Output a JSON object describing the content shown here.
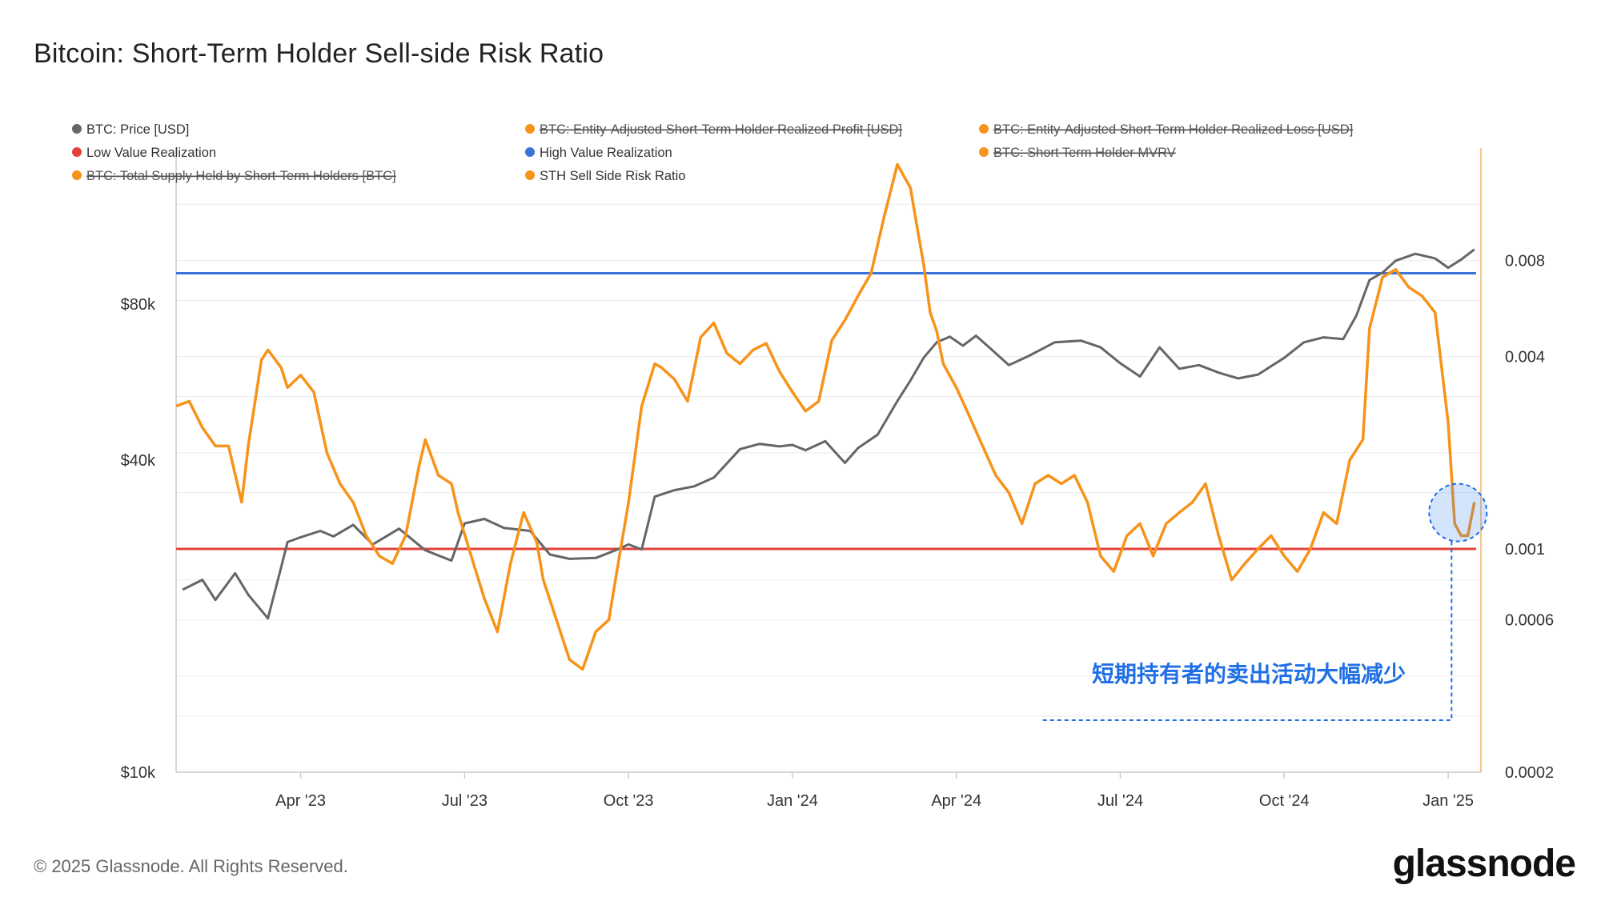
{
  "chart_data": {
    "type": "line",
    "title": "Bitcoin: Short-Term Holder Sell-side Risk Ratio",
    "x_ticks": [
      "Apr '23",
      "Jul '23",
      "Oct '23",
      "Jan '24",
      "Apr '24",
      "Jul '24",
      "Oct '24",
      "Jan '25"
    ],
    "x_tick_values": [
      2023.25,
      2023.5,
      2023.75,
      2024.0,
      2024.25,
      2024.5,
      2024.75,
      2025.0
    ],
    "xlim": [
      2023.06,
      2025.05
    ],
    "y_left": {
      "scale": "log",
      "lim": [
        10000,
        160000
      ],
      "ticks": [
        80000,
        40000,
        10000
      ],
      "tick_labels": [
        "$80k",
        "$40k",
        "$10k"
      ]
    },
    "y_right": {
      "scale": "log",
      "lim": [
        0.0002,
        0.018
      ],
      "ticks": [
        0.008,
        0.004,
        0.001,
        0.0006,
        0.0002
      ],
      "tick_labels": [
        "0.008",
        "0.004",
        "0.001",
        "0.0006",
        "0.0002"
      ]
    },
    "legend": [
      {
        "label": "BTC: Price [USD]",
        "color": "#666666",
        "struck": false
      },
      {
        "label": "BTC: Entity-Adjusted Short-Term Holder Realized Profit [USD]",
        "color": "#f7931a",
        "struck": true
      },
      {
        "label": "BTC: Entity-Adjusted Short-Term Holder Realized Loss [USD]",
        "color": "#f7931a",
        "struck": true
      },
      {
        "label": "Low Value Realization",
        "color": "#e5403a",
        "struck": false
      },
      {
        "label": "High Value Realization",
        "color": "#3b73d9",
        "struck": false
      },
      {
        "label": "BTC: Short Term Holder MVRV",
        "color": "#f7931a",
        "struck": true
      },
      {
        "label": "BTC: Total Supply Held by Short-Term Holders [BTC]",
        "color": "#f7931a",
        "struck": true
      },
      {
        "label": "STH Sell Side Risk Ratio",
        "color": "#f7931a",
        "struck": false
      }
    ],
    "thresholds": {
      "high_value_realization": 0.0073,
      "low_value_realization": 0.001
    },
    "series": [
      {
        "name": "BTC: Price [USD]",
        "axis": "left",
        "color": "#666666",
        "x": [
          2023.07,
          2023.1,
          2023.12,
          2023.15,
          2023.17,
          2023.2,
          2023.22,
          2023.23,
          2023.25,
          2023.28,
          2023.3,
          2023.33,
          2023.36,
          2023.4,
          2023.44,
          2023.48,
          2023.5,
          2023.53,
          2023.56,
          2023.6,
          2023.63,
          2023.66,
          2023.7,
          2023.73,
          2023.75,
          2023.77,
          2023.79,
          2023.82,
          2023.85,
          2023.88,
          2023.92,
          2023.95,
          2023.98,
          2024.0,
          2024.02,
          2024.05,
          2024.08,
          2024.1,
          2024.13,
          2024.16,
          2024.18,
          2024.2,
          2024.22,
          2024.24,
          2024.26,
          2024.28,
          2024.3,
          2024.33,
          2024.36,
          2024.4,
          2024.44,
          2024.47,
          2024.5,
          2024.53,
          2024.56,
          2024.59,
          2024.62,
          2024.65,
          2024.68,
          2024.71,
          2024.75,
          2024.78,
          2024.81,
          2024.84,
          2024.86,
          2024.88,
          2024.9,
          2024.92,
          2024.95,
          2024.98,
          2025.0,
          2025.02,
          2025.04
        ],
        "y": [
          22500,
          23500,
          21500,
          24200,
          22000,
          19800,
          24800,
          27800,
          28400,
          29200,
          28500,
          30000,
          27500,
          29500,
          26800,
          25600,
          30200,
          30800,
          29600,
          29200,
          26300,
          25800,
          25900,
          26800,
          27500,
          26900,
          34000,
          35000,
          35600,
          37000,
          42000,
          43000,
          42500,
          42800,
          41800,
          43500,
          39500,
          42200,
          44800,
          52000,
          57000,
          63000,
          67500,
          69200,
          66500,
          69500,
          66000,
          61000,
          63500,
          67500,
          68000,
          66000,
          61500,
          58000,
          66000,
          60000,
          61000,
          59000,
          57500,
          58500,
          63000,
          67500,
          69000,
          68500,
          76000,
          89000,
          92000,
          97000,
          100000,
          98000,
          94000,
          97500,
          102000
        ]
      },
      {
        "name": "STH Sell Side Risk Ratio",
        "axis": "right",
        "color": "#f7931a",
        "x": [
          2023.06,
          2023.08,
          2023.1,
          2023.12,
          2023.14,
          2023.16,
          2023.17,
          2023.19,
          2023.2,
          2023.22,
          2023.23,
          2023.25,
          2023.27,
          2023.29,
          2023.31,
          2023.33,
          2023.35,
          2023.37,
          2023.39,
          2023.41,
          2023.43,
          2023.44,
          2023.46,
          2023.48,
          2023.49,
          2023.51,
          2023.53,
          2023.55,
          2023.57,
          2023.59,
          2023.61,
          2023.62,
          2023.64,
          2023.66,
          2023.68,
          2023.7,
          2023.72,
          2023.73,
          2023.75,
          2023.77,
          2023.79,
          2023.8,
          2023.82,
          2023.84,
          2023.86,
          2023.88,
          2023.9,
          2023.92,
          2023.94,
          2023.96,
          2023.98,
          2024.0,
          2024.02,
          2024.04,
          2024.06,
          2024.08,
          2024.1,
          2024.12,
          2024.14,
          2024.16,
          2024.18,
          2024.19,
          2024.2,
          2024.21,
          2024.22,
          2024.23,
          2024.25,
          2024.27,
          2024.29,
          2024.31,
          2024.33,
          2024.35,
          2024.37,
          2024.39,
          2024.41,
          2024.43,
          2024.45,
          2024.47,
          2024.49,
          2024.51,
          2024.53,
          2024.55,
          2024.57,
          2024.59,
          2024.61,
          2024.63,
          2024.65,
          2024.67,
          2024.69,
          2024.71,
          2024.73,
          2024.75,
          2024.77,
          2024.79,
          2024.81,
          2024.83,
          2024.85,
          2024.87,
          2024.88,
          2024.9,
          2024.92,
          2024.94,
          2024.96,
          2024.98,
          2025.0,
          2025.01,
          2025.02,
          2025.03,
          2025.04
        ],
        "y": [
          0.0028,
          0.0029,
          0.0024,
          0.0021,
          0.0021,
          0.0014,
          0.0021,
          0.0039,
          0.0042,
          0.0037,
          0.0032,
          0.0035,
          0.0031,
          0.002,
          0.0016,
          0.0014,
          0.0011,
          0.00095,
          0.0009,
          0.0011,
          0.0018,
          0.0022,
          0.0017,
          0.0016,
          0.0013,
          0.00095,
          0.0007,
          0.00055,
          0.0009,
          0.0013,
          0.00105,
          0.0008,
          0.0006,
          0.00045,
          0.00042,
          0.00055,
          0.0006,
          0.0008,
          0.0014,
          0.0028,
          0.0038,
          0.0037,
          0.0034,
          0.0029,
          0.0046,
          0.0051,
          0.0041,
          0.0038,
          0.0042,
          0.0044,
          0.0036,
          0.0031,
          0.0027,
          0.0029,
          0.0045,
          0.0052,
          0.0062,
          0.0073,
          0.011,
          0.016,
          0.0135,
          0.0102,
          0.0078,
          0.0055,
          0.0048,
          0.0038,
          0.0032,
          0.0026,
          0.0021,
          0.0017,
          0.0015,
          0.0012,
          0.0016,
          0.0017,
          0.0016,
          0.0017,
          0.0014,
          0.00095,
          0.00085,
          0.0011,
          0.0012,
          0.00095,
          0.0012,
          0.0013,
          0.0014,
          0.0016,
          0.0011,
          0.0008,
          0.0009,
          0.001,
          0.0011,
          0.00095,
          0.00085,
          0.001,
          0.0013,
          0.0012,
          0.0019,
          0.0022,
          0.0049,
          0.0071,
          0.0075,
          0.0066,
          0.0062,
          0.0055,
          0.0025,
          0.0012,
          0.0011,
          0.0011,
          0.0014
        ]
      }
    ],
    "annotation": {
      "text": "短期持有者的卖出活动大幅减少",
      "point_x": 2025.015,
      "point_y": 0.0013
    },
    "colors": {
      "price": "#666666",
      "ratio": "#f7931a",
      "high": "#3b73d9",
      "low": "#e5403a",
      "annotation": "#1f6fe5",
      "grid": "#ebebeb"
    }
  },
  "footer": {
    "copyright": "© 2025 Glassnode. All Rights Reserved.",
    "brand": "glassnode"
  }
}
